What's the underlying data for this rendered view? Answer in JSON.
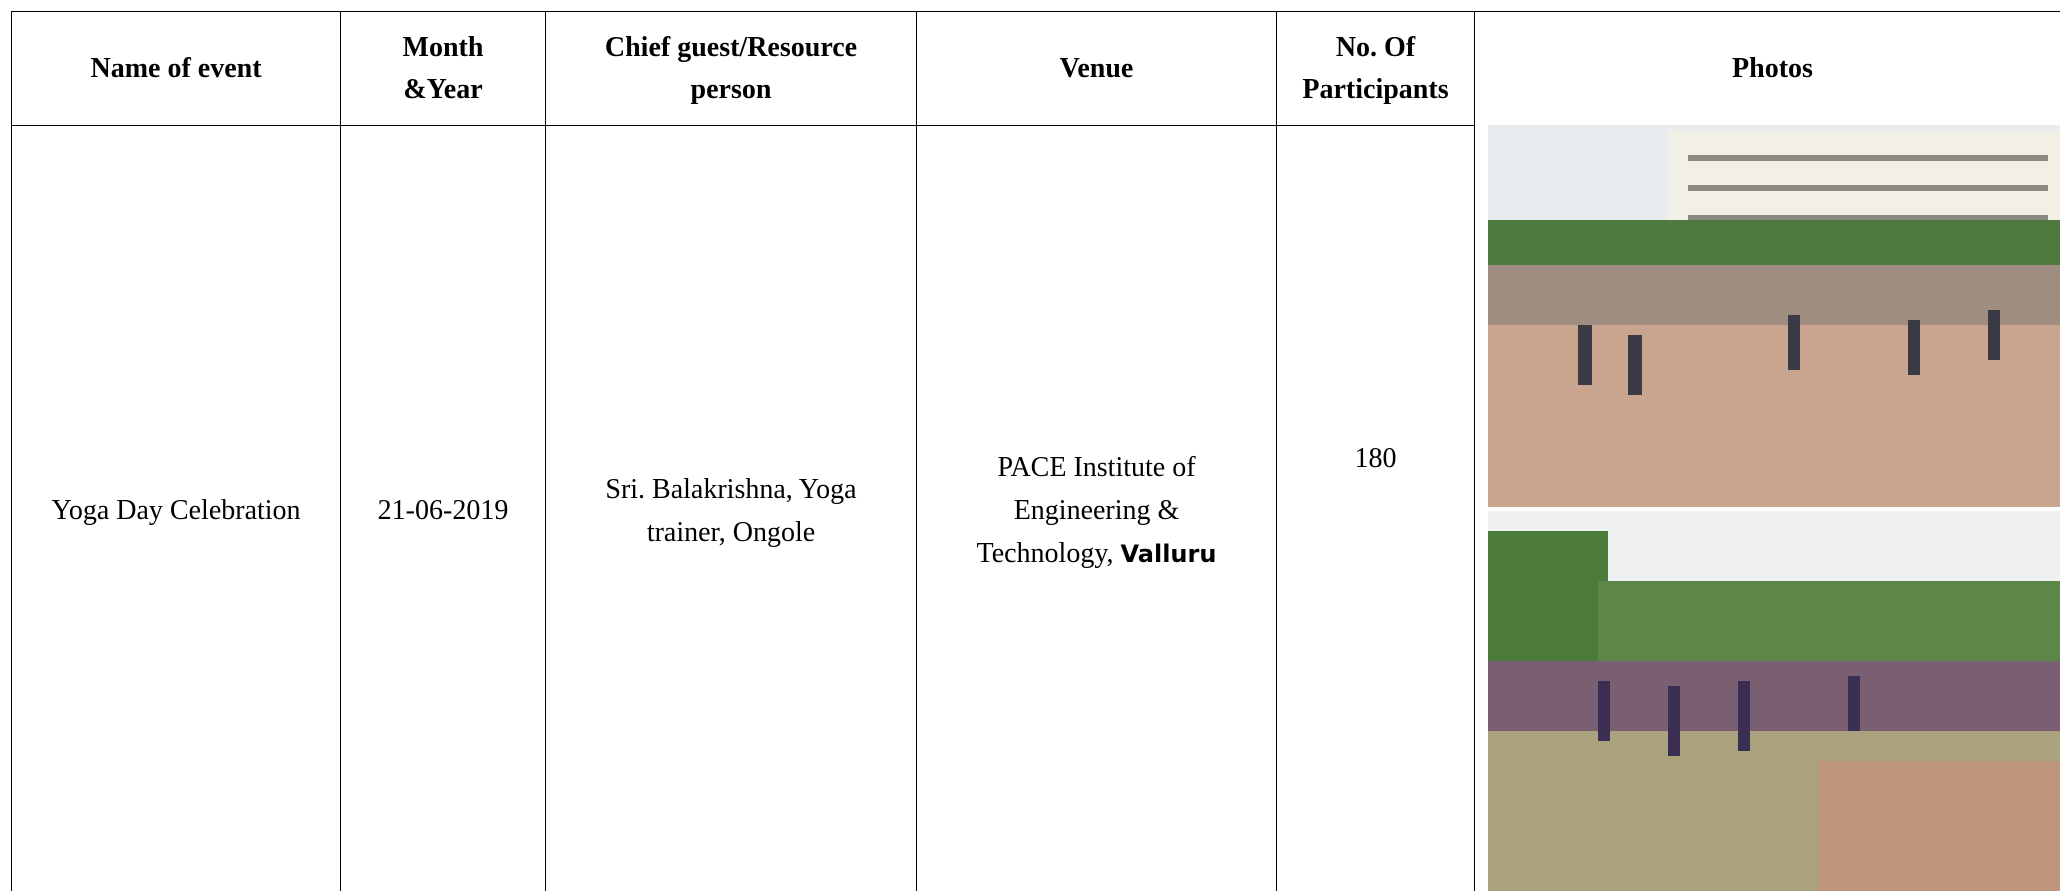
{
  "table": {
    "header": [
      [
        "Name of  event"
      ],
      [
        "Month",
        "&Year"
      ],
      [
        "Chief guest/Resource",
        "person"
      ],
      [
        "Venue"
      ],
      [
        "No. Of",
        "Participants"
      ],
      [
        "Photos"
      ]
    ],
    "rows": [
      [
        [
          "Yoga Day Celebration"
        ],
        [
          "21-06-2019"
        ],
        [
          "Sri. Balakrishna, Yoga",
          "trainer, Ongole"
        ],
        {
          "lines": [
            "PACE Institute of",
            "Engineering &",
            "Technology,"
          ],
          "bold": "Valluru"
        },
        [
          "180"
        ]
      ]
    ]
  }
}
